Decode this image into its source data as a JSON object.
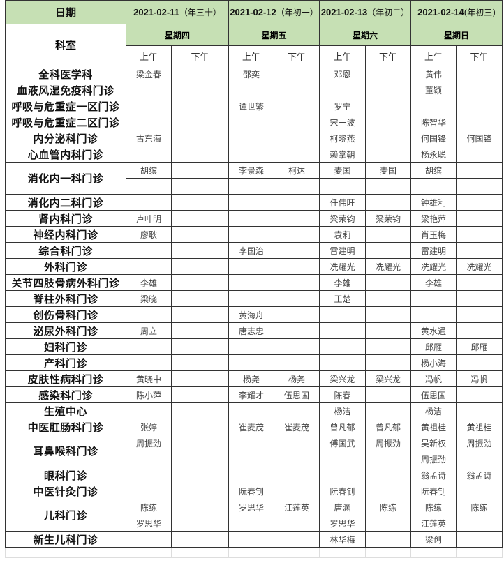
{
  "header": {
    "date_label": "日期",
    "dept_label": "科室",
    "days": [
      {
        "date": "2021-02-11",
        "lunar": "（年三十）",
        "weekday": "星期四"
      },
      {
        "date": "2021-02-12",
        "lunar": "（年初一）",
        "weekday": "星期五"
      },
      {
        "date": "2021-02-13",
        "lunar": "（年初二）",
        "weekday": "星期六"
      },
      {
        "date": "2021-02-14",
        "lunar": "(年初三)",
        "weekday": "星期日"
      }
    ],
    "am": "上午",
    "pm": "下午",
    "header_color": "#c6e0b4"
  },
  "rows": [
    {
      "dept": "全科医学科",
      "lines": [
        [
          "梁金春",
          "",
          "邵奕",
          "",
          "邓恩",
          "",
          "黄伟",
          ""
        ]
      ]
    },
    {
      "dept": "血液风湿免疫科门诊",
      "lines": [
        [
          "",
          "",
          "",
          "",
          "",
          "",
          "董颖",
          ""
        ]
      ]
    },
    {
      "dept": "呼吸与危重症一区门诊",
      "lines": [
        [
          "",
          "",
          "谭世繁",
          "",
          "罗宁",
          "",
          "",
          ""
        ]
      ]
    },
    {
      "dept": "呼吸与危重症二区门诊",
      "lines": [
        [
          "",
          "",
          "",
          "",
          "宋一波",
          "",
          "陈智华",
          ""
        ]
      ]
    },
    {
      "dept": "内分泌科门诊",
      "lines": [
        [
          "古东海",
          "",
          "",
          "",
          "柯晓燕",
          "",
          "何国锋",
          "何国锋"
        ]
      ]
    },
    {
      "dept": "心血管内科门诊",
      "lines": [
        [
          "",
          "",
          "",
          "",
          "赖掌朝",
          "",
          "杨永聪",
          ""
        ]
      ]
    },
    {
      "dept": "消化内一科门诊",
      "lines": [
        [
          "胡缤",
          "",
          "李景森",
          "柯达",
          "麦国",
          "麦国",
          "胡缤",
          ""
        ],
        [
          "",
          "",
          "",
          "",
          "",
          "",
          "",
          ""
        ]
      ]
    },
    {
      "dept": "消化内二科门诊",
      "lines": [
        [
          "",
          "",
          "",
          "",
          "任伟旺",
          "",
          "钟雄利",
          ""
        ]
      ]
    },
    {
      "dept": "肾内科门诊",
      "lines": [
        [
          "卢叶明",
          "",
          "",
          "",
          "梁荣钧",
          "梁荣钧",
          "梁艳萍",
          ""
        ]
      ]
    },
    {
      "dept": "神经内科门诊",
      "lines": [
        [
          "廖耿",
          "",
          "",
          "",
          "袁莉",
          "",
          "肖玉梅",
          ""
        ]
      ]
    },
    {
      "dept": "综合科门诊",
      "lines": [
        [
          "",
          "",
          "李国治",
          "",
          "雷建明",
          "",
          "雷建明",
          ""
        ]
      ]
    },
    {
      "dept": "外科门诊",
      "lines": [
        [
          "",
          "",
          "",
          "",
          "冼耀光",
          "冼耀光",
          "冼耀光",
          "冼耀光"
        ]
      ]
    },
    {
      "dept": "关节四肢骨病外科门诊",
      "lines": [
        [
          "李雄",
          "",
          "",
          "",
          "李雄",
          "",
          "李雄",
          ""
        ]
      ]
    },
    {
      "dept": "脊柱外科门诊",
      "lines": [
        [
          "梁晓",
          "",
          "",
          "",
          "王楚",
          "",
          "",
          ""
        ]
      ]
    },
    {
      "dept": "创伤骨科门诊",
      "lines": [
        [
          "",
          "",
          "黄海舟",
          "",
          "",
          "",
          "",
          ""
        ]
      ]
    },
    {
      "dept": "泌尿外科门诊",
      "lines": [
        [
          "周立",
          "",
          "唐志忠",
          "",
          "",
          "",
          "黄水通",
          ""
        ]
      ]
    },
    {
      "dept": "妇科门诊",
      "lines": [
        [
          "",
          "",
          "",
          "",
          "",
          "",
          "邱雁",
          "邱雁"
        ]
      ]
    },
    {
      "dept": "产科门诊",
      "lines": [
        [
          "",
          "",
          "",
          "",
          "",
          "",
          "杨小海",
          ""
        ]
      ]
    },
    {
      "dept": "皮肤性病科门诊",
      "lines": [
        [
          "黄晓中",
          "",
          "杨尧",
          "杨尧",
          "梁兴龙",
          "梁兴龙",
          "冯帆",
          "冯帆"
        ]
      ]
    },
    {
      "dept": "感染科门诊",
      "lines": [
        [
          "陈小萍",
          "",
          "李耀才",
          "伍思国",
          "陈春",
          "",
          "伍思国",
          ""
        ]
      ]
    },
    {
      "dept": "生殖中心",
      "lines": [
        [
          "",
          "",
          "",
          "",
          "杨洁",
          "",
          "杨洁",
          ""
        ]
      ]
    },
    {
      "dept": "中医肛肠科门诊",
      "lines": [
        [
          "张婷",
          "",
          "崔麦茂",
          "崔麦茂",
          "曾凡郁",
          "曾凡郁",
          "黄祖桂",
          "黄祖桂"
        ]
      ]
    },
    {
      "dept": "耳鼻喉科门诊",
      "lines": [
        [
          "周振劲",
          "",
          "",
          "",
          "傅国武",
          "周振劲",
          "吴新权",
          "周振劲"
        ],
        [
          "",
          "",
          "",
          "",
          "",
          "",
          "周振劲",
          ""
        ]
      ]
    },
    {
      "dept": "眼科门诊",
      "lines": [
        [
          "",
          "",
          "",
          "",
          "",
          "",
          "翁孟诗",
          "翁孟诗"
        ]
      ]
    },
    {
      "dept": "中医针灸门诊",
      "lines": [
        [
          "",
          "",
          "阮春钊",
          "",
          "阮春钊",
          "",
          "阮春钊",
          ""
        ]
      ]
    },
    {
      "dept": "儿科门诊",
      "lines": [
        [
          "陈练",
          "",
          "罗思华",
          "江莲英",
          "唐渊",
          "陈练",
          "陈练",
          "陈练"
        ],
        [
          "罗思华",
          "",
          "",
          "",
          "罗思华",
          "",
          "江莲英",
          ""
        ]
      ]
    },
    {
      "dept": "新生儿科门诊",
      "lines": [
        [
          "",
          "",
          "",
          "",
          "林华梅",
          "",
          "梁创",
          ""
        ]
      ]
    }
  ]
}
